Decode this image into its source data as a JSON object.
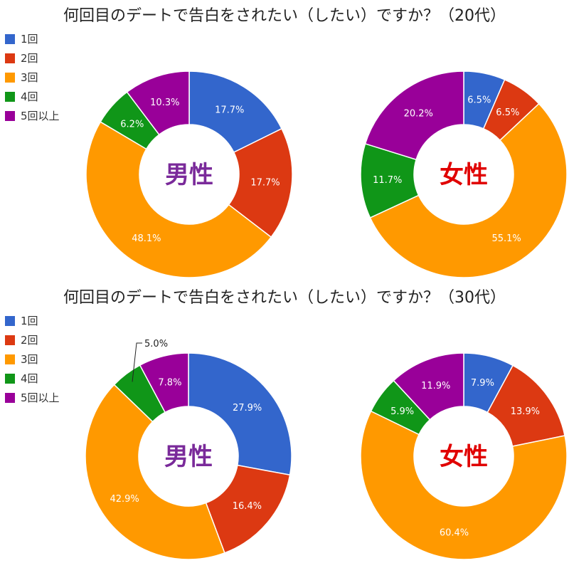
{
  "colors": {
    "one": "#3366cc",
    "two": "#dc3912",
    "three": "#ff9900",
    "four": "#109618",
    "fiveplus": "#990099",
    "male": "#7a2a9a",
    "female": "#e00000"
  },
  "legend": [
    "1回",
    "2回",
    "3回",
    "4回",
    "5回以上"
  ],
  "charts": [
    {
      "title": "何回目のデートで告白をされたい（したい）ですか？（20代）",
      "pies": [
        {
          "center_label": "男性",
          "gender": "male",
          "values": [
            17.7,
            17.7,
            48.1,
            6.2,
            10.3
          ],
          "labels": [
            "17.7%",
            "17.7%",
            "48.1%",
            "6.2%",
            "10.3%"
          ]
        },
        {
          "center_label": "女性",
          "gender": "female",
          "values": [
            6.5,
            6.5,
            55.1,
            11.7,
            20.2
          ],
          "labels": [
            "6.5%",
            "6.5%",
            "55.1%",
            "11.7%",
            "20.2%"
          ]
        }
      ]
    },
    {
      "title": "何回目のデートで告白をされたい（したい）ですか？（30代）",
      "pies": [
        {
          "center_label": "男性",
          "gender": "male",
          "values": [
            27.9,
            16.4,
            42.9,
            5.0,
            7.8
          ],
          "labels": [
            "27.9%",
            "16.4%",
            "42.9%",
            "5.0%",
            "7.8%"
          ]
        },
        {
          "center_label": "女性",
          "gender": "female",
          "values": [
            7.9,
            13.9,
            60.4,
            5.9,
            11.9
          ],
          "labels": [
            "7.9%",
            "13.9%",
            "60.4%",
            "5.9%",
            "11.9%"
          ]
        }
      ]
    }
  ],
  "chart_data": [
    {
      "type": "pie",
      "title": "何回目のデートで告白をされたい（したい）ですか？（20代）",
      "categories": [
        "1回",
        "2回",
        "3回",
        "4回",
        "5回以上"
      ],
      "series": [
        {
          "name": "男性",
          "values": [
            17.7,
            17.7,
            48.1,
            6.2,
            10.3
          ]
        },
        {
          "name": "女性",
          "values": [
            6.5,
            6.5,
            55.1,
            11.7,
            20.2
          ]
        }
      ],
      "legend": "left"
    },
    {
      "type": "pie",
      "title": "何回目のデートで告白をされたい（したい）ですか？（30代）",
      "categories": [
        "1回",
        "2回",
        "3回",
        "4回",
        "5回以上"
      ],
      "series": [
        {
          "name": "男性",
          "values": [
            27.9,
            16.4,
            42.9,
            5.0,
            7.8
          ]
        },
        {
          "name": "女性",
          "values": [
            7.9,
            13.9,
            60.4,
            5.9,
            11.9
          ]
        }
      ],
      "legend": "left"
    }
  ]
}
